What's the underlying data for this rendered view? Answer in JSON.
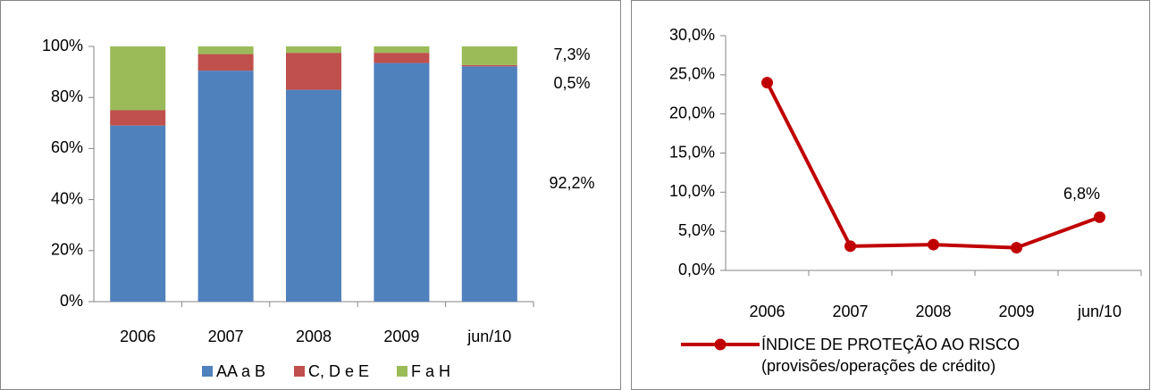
{
  "chart_data": [
    {
      "type": "stacked_bar",
      "categories": [
        "2006",
        "2007",
        "2008",
        "2009",
        "jun/10"
      ],
      "series": [
        {
          "name": "AA a B",
          "color": "#4f81bd",
          "values": [
            69,
            90.5,
            83,
            93.5,
            92.2
          ],
          "value_labels": [
            null,
            null,
            null,
            null,
            "92,2%"
          ]
        },
        {
          "name": "C, D e E",
          "color": "#c0504d",
          "values": [
            6,
            6.5,
            14.5,
            4,
            0.5
          ],
          "value_labels": [
            null,
            null,
            null,
            null,
            "0,5%"
          ]
        },
        {
          "name": "F a H",
          "color": "#9bbb59",
          "values": [
            25,
            3,
            2.5,
            2.5,
            7.3
          ],
          "value_labels": [
            null,
            null,
            null,
            null,
            "7,3%"
          ]
        }
      ],
      "ylim": [
        0,
        100
      ],
      "yticks": [
        {
          "value": 0,
          "label": "0%"
        },
        {
          "value": 20,
          "label": "20%"
        },
        {
          "value": 40,
          "label": "40%"
        },
        {
          "value": 60,
          "label": "60%"
        },
        {
          "value": 80,
          "label": "80%"
        },
        {
          "value": 100,
          "label": "100%"
        }
      ],
      "legend": "bottom"
    },
    {
      "type": "line",
      "categories": [
        "2006",
        "2007",
        "2008",
        "2009",
        "jun/10"
      ],
      "series": [
        {
          "name": "ÍNDICE DE PROTEÇÃO AO RISCO (provisões/operações de crédito)",
          "color": "#c00000",
          "values": [
            24.0,
            3.1,
            3.3,
            2.9,
            6.8
          ],
          "value_labels": [
            null,
            null,
            null,
            null,
            "6,8%"
          ]
        }
      ],
      "ylim": [
        0,
        30
      ],
      "yticks": [
        {
          "value": 0,
          "label": "0,0%"
        },
        {
          "value": 5,
          "label": "5,0%"
        },
        {
          "value": 10,
          "label": "10,0%"
        },
        {
          "value": 15,
          "label": "15,0%"
        },
        {
          "value": 20,
          "label": "20,0%"
        },
        {
          "value": 25,
          "label": "25,0%"
        },
        {
          "value": 30,
          "label": "30,0%"
        }
      ],
      "legend": "bottom"
    }
  ]
}
